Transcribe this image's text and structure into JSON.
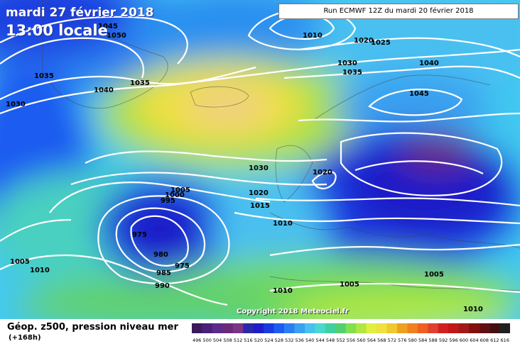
{
  "header": {
    "date": "mardi 27 février 2018",
    "local_time": "13:00 locale",
    "run": "Run ECMWF 12Z du mardi 20 février 2018"
  },
  "footer": {
    "variable": "Géop. z500, pression niveau mer",
    "lead": "(+168h)",
    "copyright": "Copyright 2018 Meteociel.fr"
  },
  "isobar_labels": [
    "1045",
    "1050",
    "1035",
    "1040",
    "1035",
    "1030",
    "1010",
    "1020",
    "1025",
    "1030",
    "1035",
    "1040",
    "1045",
    "1030",
    "1020",
    "1020",
    "1015",
    "1010",
    "1005",
    "1000",
    "995",
    "975",
    "980",
    "975",
    "985",
    "990",
    "1005",
    "1010",
    "1010",
    "1005",
    "1005",
    "1010"
  ],
  "scale": {
    "labels": [
      "496",
      "500",
      "504",
      "508",
      "512",
      "516",
      "520",
      "524",
      "528",
      "532",
      "536",
      "540",
      "544",
      "548",
      "552",
      "556",
      "560",
      "564",
      "568",
      "572",
      "576",
      "580",
      "584",
      "588",
      "592",
      "596",
      "600",
      "604",
      "608",
      "612",
      "616"
    ],
    "colors": [
      "#3a1a5a",
      "#4b1f78",
      "#5c2a8c",
      "#6a2a7a",
      "#7a3488",
      "#2a2aa8",
      "#1e1ec8",
      "#1a3ae0",
      "#1c5cf0",
      "#2a7ff0",
      "#3aa0f0",
      "#48c0f0",
      "#48d8d0",
      "#40d0a0",
      "#50d070",
      "#80e050",
      "#b0e840",
      "#e0f040",
      "#f0e040",
      "#f0c830",
      "#f0a020",
      "#f08020",
      "#f06020",
      "#e04030",
      "#d02020",
      "#c01818",
      "#a01818",
      "#801010",
      "#601010",
      "#401010",
      "#202020"
    ]
  }
}
